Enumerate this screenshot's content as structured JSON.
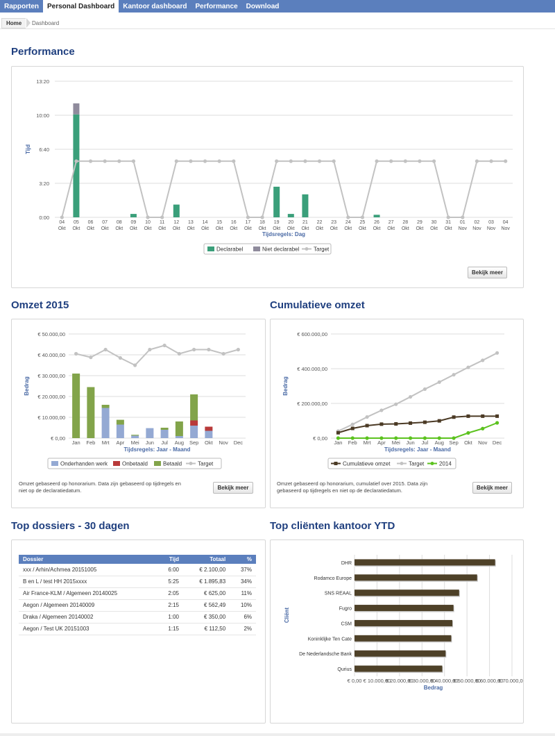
{
  "nav": {
    "tabs": [
      {
        "label": "Rapporten",
        "active": false
      },
      {
        "label": "Personal Dashboard",
        "active": true
      },
      {
        "label": "Kantoor dashboard",
        "active": false
      },
      {
        "label": "Performance",
        "active": false
      },
      {
        "label": "Download",
        "active": false
      }
    ]
  },
  "breadcrumb": {
    "home": "Home",
    "current": "Dashboard"
  },
  "performance": {
    "title": "Performance",
    "button": "Bekijk meer",
    "chart_data": {
      "type": "bar",
      "ylabel": "Tijd",
      "xlabel": "Tijdsregels: Dag",
      "yticks": [
        "0:00",
        "3:20",
        "6:40",
        "10:00",
        "13:20"
      ],
      "ymax_minutes": 800,
      "categories": [
        [
          "04",
          "Okt"
        ],
        [
          "05",
          "Okt"
        ],
        [
          "06",
          "Okt"
        ],
        [
          "07",
          "Okt"
        ],
        [
          "08",
          "Okt"
        ],
        [
          "09",
          "Okt"
        ],
        [
          "10",
          "Okt"
        ],
        [
          "11",
          "Okt"
        ],
        [
          "12",
          "Okt"
        ],
        [
          "13",
          "Okt"
        ],
        [
          "14",
          "Okt"
        ],
        [
          "15",
          "Okt"
        ],
        [
          "16",
          "Okt"
        ],
        [
          "17",
          "Okt"
        ],
        [
          "18",
          "Okt"
        ],
        [
          "19",
          "Okt"
        ],
        [
          "20",
          "Okt"
        ],
        [
          "21",
          "Okt"
        ],
        [
          "22",
          "Okt"
        ],
        [
          "23",
          "Okt"
        ],
        [
          "24",
          "Okt"
        ],
        [
          "25",
          "Okt"
        ],
        [
          "26",
          "Okt"
        ],
        [
          "27",
          "Okt"
        ],
        [
          "28",
          "Okt"
        ],
        [
          "29",
          "Okt"
        ],
        [
          "30",
          "Okt"
        ],
        [
          "31",
          "Okt"
        ],
        [
          "01",
          "Nov"
        ],
        [
          "02",
          "Nov"
        ],
        [
          "03",
          "Nov"
        ],
        [
          "04",
          "Nov"
        ]
      ],
      "series": [
        {
          "name": "Declarabel",
          "color": "#3a9f7a",
          "values": [
            0,
            605,
            0,
            0,
            0,
            20,
            0,
            0,
            75,
            0,
            0,
            0,
            0,
            0,
            0,
            180,
            20,
            135,
            0,
            0,
            0,
            0,
            15,
            0,
            0,
            0,
            0,
            0,
            0,
            0,
            0,
            0
          ]
        },
        {
          "name": "Niet declarabel",
          "color": "#8f8b9c",
          "values": [
            0,
            65,
            0,
            0,
            0,
            0,
            0,
            0,
            0,
            0,
            0,
            0,
            0,
            0,
            0,
            0,
            0,
            0,
            0,
            0,
            0,
            0,
            0,
            0,
            0,
            0,
            0,
            0,
            0,
            0,
            0,
            0
          ]
        },
        {
          "name": "Target",
          "color": "#c2c2c2",
          "type": "line",
          "values": [
            0,
            330,
            330,
            330,
            330,
            330,
            0,
            0,
            330,
            330,
            330,
            330,
            330,
            0,
            0,
            330,
            330,
            330,
            330,
            330,
            0,
            0,
            330,
            330,
            330,
            330,
            330,
            0,
            0,
            330,
            330,
            330
          ]
        }
      ]
    }
  },
  "omzet": {
    "title": "Omzet 2015",
    "button": "Bekijk meer",
    "note": [
      "Omzet gebaseerd op honorarium. Data zijn gebaseerd op tijdregels en",
      "niet op de declaratiedatum."
    ],
    "chart_data": {
      "type": "bar",
      "ylabel": "Bedrag",
      "xlabel": "Tijdsregels: Jaar - Maand",
      "yticks": [
        "€ 0,00",
        "€ 10.000,00",
        "€ 20.000,00",
        "€ 30.000,00",
        "€ 40.000,00",
        "€ 50.000,00"
      ],
      "ymax": 50000,
      "categories": [
        "Jan",
        "Feb",
        "Mrt",
        "Apr",
        "Mei",
        "Jun",
        "Jul",
        "Aug",
        "Sep",
        "Okt",
        "Nov",
        "Dec"
      ],
      "series": [
        {
          "name": "Onderhanden werk",
          "color": "#94a9d3",
          "values": [
            0,
            0,
            14500,
            6500,
            1200,
            4800,
            4000,
            1000,
            6000,
            3500,
            0,
            0
          ]
        },
        {
          "name": "Onbetaald",
          "color": "#b83a3a",
          "values": [
            0,
            0,
            0,
            0,
            0,
            0,
            0,
            0,
            2500,
            2000,
            0,
            0
          ]
        },
        {
          "name": "Betaald",
          "color": "#82a44a",
          "values": [
            31000,
            24500,
            1500,
            2300,
            400,
            0,
            1000,
            7000,
            12500,
            0,
            0,
            0
          ]
        },
        {
          "name": "Target",
          "color": "#c2c2c2",
          "type": "line",
          "values": [
            40500,
            38800,
            42500,
            38500,
            35000,
            42500,
            44500,
            40500,
            42500,
            42500,
            40500,
            42500
          ]
        }
      ]
    }
  },
  "cumulatief": {
    "title": "Cumulatieve omzet",
    "button": "Bekijk meer",
    "note": [
      "Omzet gebaseerd op honorarium, cumulatief over 2015. Data zijn",
      "gebaseerd op tijdregels en niet op de declaratiedatum."
    ],
    "chart_data": {
      "type": "line",
      "ylabel": "Bedrag",
      "xlabel": "Tijdsregels: Jaar - Maand",
      "yticks": [
        "€ 0,00",
        "€ 200.000,00",
        "€ 400.000,00",
        "€ 600.000,00"
      ],
      "ymax": 600000,
      "categories": [
        "Jan",
        "Feb",
        "Mrt",
        "Apr",
        "Mei",
        "Jun",
        "Jul",
        "Aug",
        "Sep",
        "Okt",
        "Nov",
        "Dec"
      ],
      "series": [
        {
          "name": "Cumulatieve omzet",
          "color": "#4b3a25",
          "values": [
            31000,
            56000,
            72000,
            80500,
            82000,
            86500,
            91500,
            99500,
            121000,
            126500,
            126500,
            126500
          ]
        },
        {
          "name": "Target",
          "color": "#c2c2c2",
          "values": [
            40500,
            79300,
            121800,
            160300,
            195300,
            237800,
            282300,
            322800,
            365300,
            407800,
            448300,
            490800
          ]
        },
        {
          "name": "2014",
          "color": "#5cc21f",
          "values": [
            0,
            0,
            0,
            0,
            0,
            0,
            0,
            0,
            0,
            30000,
            55000,
            88000
          ]
        }
      ]
    }
  },
  "dossiers": {
    "title": "Top dossiers - 30 dagen",
    "headers": [
      "Dossier",
      "Tijd",
      "Totaal",
      "%"
    ],
    "rows": [
      [
        "xxx / Arhin/Achmea 20151005",
        "6:00",
        "€ 2.100,00",
        "37%"
      ],
      [
        "B en L / test HH 2015xxxx",
        "5:25",
        "€ 1.895,83",
        "34%"
      ],
      [
        "Air France-KLM / Algemeen 20140025",
        "2:05",
        "€ 625,00",
        "11%"
      ],
      [
        "Aegon / Algemeen 20140009",
        "2:15",
        "€ 562,49",
        "10%"
      ],
      [
        "Draka / Algemeen 20140002",
        "1:00",
        "€ 350,00",
        "6%"
      ],
      [
        "Aegon / Test UK 20151003",
        "1:15",
        "€ 112,50",
        "2%"
      ]
    ]
  },
  "clienten": {
    "title": "Top cliënten kantoor YTD",
    "chart_data": {
      "type": "bar",
      "orientation": "horizontal",
      "ylabel": "Cliënt",
      "xlabel": "Bedrag",
      "xticks": [
        "€ 0,00",
        "€ 10.000,00",
        "€ 20.000,00",
        "€ 30.000,00",
        "€ 40.000,00",
        "€ 50.000,00",
        "€ 60.000,00",
        "€ 70.000,00"
      ],
      "xmax": 70000,
      "categories": [
        "DHR",
        "Rodamco Europe",
        "SNS REAAL",
        "Fugro",
        "CSM",
        "Koninklijke Ten Cate",
        "De Nederlandsche Bank",
        "Qurius"
      ],
      "series": [
        {
          "name": "Bedrag",
          "color": "#4e4128",
          "values": [
            62500,
            54500,
            46500,
            44000,
            43500,
            43000,
            40500,
            39000
          ]
        }
      ]
    }
  }
}
